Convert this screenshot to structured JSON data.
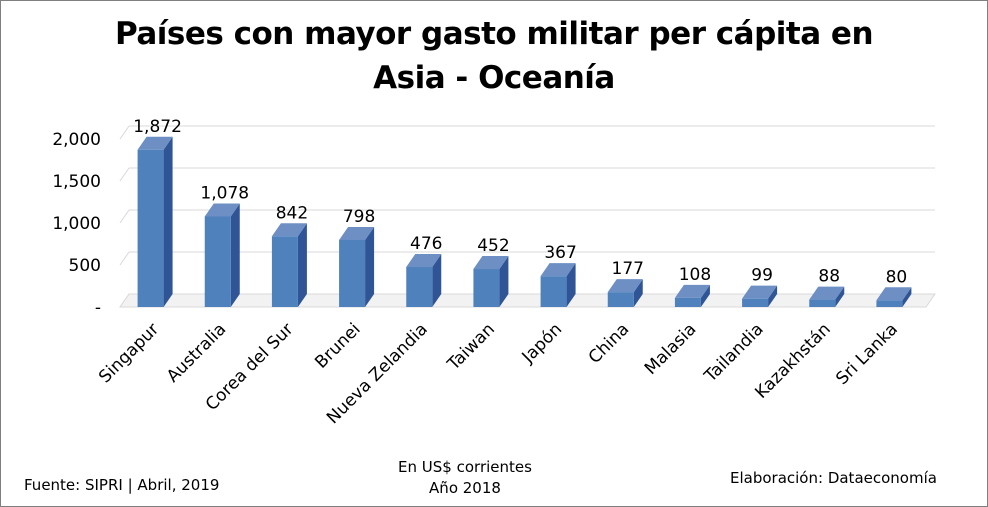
{
  "chart_data": {
    "type": "bar",
    "title_line1": "Países con mayor gasto militar per cápita en",
    "title_line2": "Asia - Oceanía",
    "categories": [
      "Singapur",
      "Australia",
      "Corea del Sur",
      "Brunei",
      "Nueva Zelandia",
      "Taiwan",
      "Japón",
      "China",
      "Malasia",
      "Tailandia",
      "Kazakhstán",
      "Sri Lanka"
    ],
    "values": [
      1872,
      1078,
      842,
      798,
      476,
      452,
      367,
      177,
      108,
      99,
      88,
      80
    ],
    "value_labels": [
      "1,872",
      "1,078",
      "842",
      "798",
      "476",
      "452",
      "367",
      "177",
      "108",
      "99",
      "88",
      "80"
    ],
    "ylim": [
      0,
      2000
    ],
    "yticks": [
      0,
      500,
      1000,
      1500,
      2000
    ],
    "ytick_labels": [
      "-",
      "500",
      "1,000",
      "1,500",
      "2,000"
    ],
    "grid": true,
    "bar_color": "#4f81bd",
    "bar_side_color": "#2f5597",
    "bar_top_color": "#6d8fc4",
    "style": "3d-column"
  },
  "footer": {
    "source": "Fuente: SIPRI | Abril, 2019",
    "unit_line1": "En US$ corrientes",
    "unit_line2": "Año 2018",
    "credit": "Elaboración: Dataeconomía"
  }
}
